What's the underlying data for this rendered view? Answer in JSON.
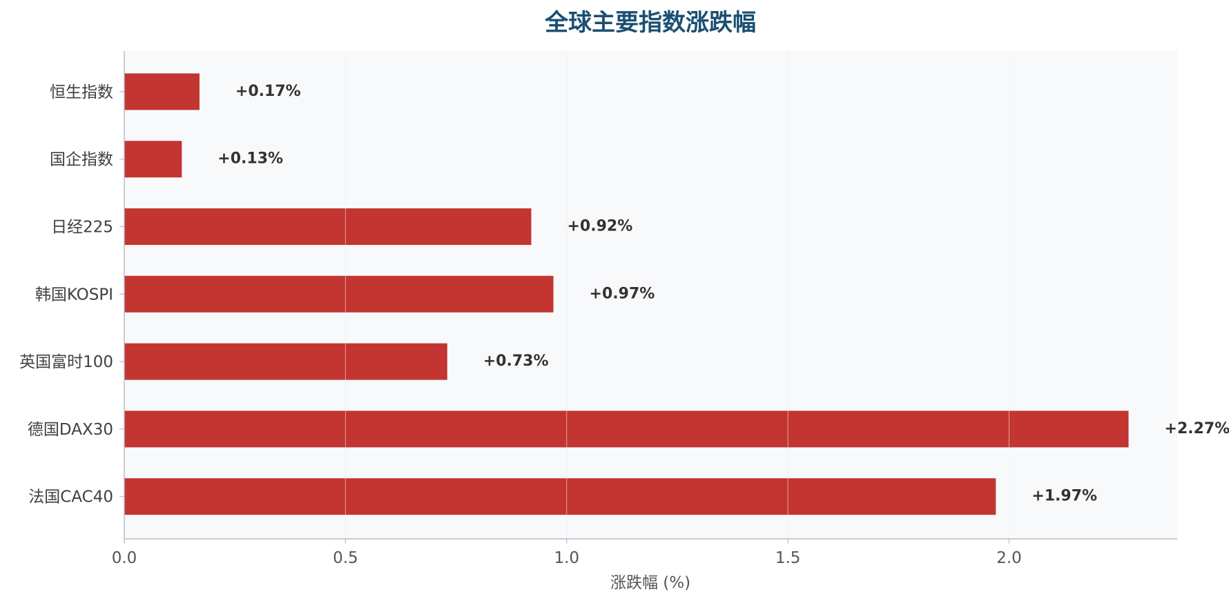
{
  "chart_data": {
    "type": "bar",
    "orientation": "horizontal",
    "title": "全球主要指数涨跌幅",
    "xlabel": "涨跌幅 (%)",
    "ylabel": "",
    "categories": [
      "恒生指数",
      "国企指数",
      "日经225",
      "韩国KOSPI",
      "英国富时100",
      "德国DAX30",
      "法国CAC40"
    ],
    "values": [
      0.17,
      0.13,
      0.92,
      0.97,
      0.73,
      2.27,
      1.97
    ],
    "data_labels": [
      "+0.17%",
      "+0.13%",
      "+0.92%",
      "+0.97%",
      "+0.73%",
      "+2.27%",
      "+1.97%"
    ],
    "xlim": [
      0,
      2.38
    ],
    "xticks": [
      0.0,
      0.5,
      1.0,
      1.5,
      2.0
    ],
    "xtick_labels": [
      "0.0",
      "0.5",
      "1.0",
      "1.5",
      "2.0"
    ],
    "grid": "vertical",
    "legend": "none",
    "colors": {
      "bar": "#c23531",
      "title": "#1b4f72",
      "plot_background": "#f8f9fb",
      "grid": "#e3e6ea",
      "axis": "#b8bcc2"
    }
  }
}
